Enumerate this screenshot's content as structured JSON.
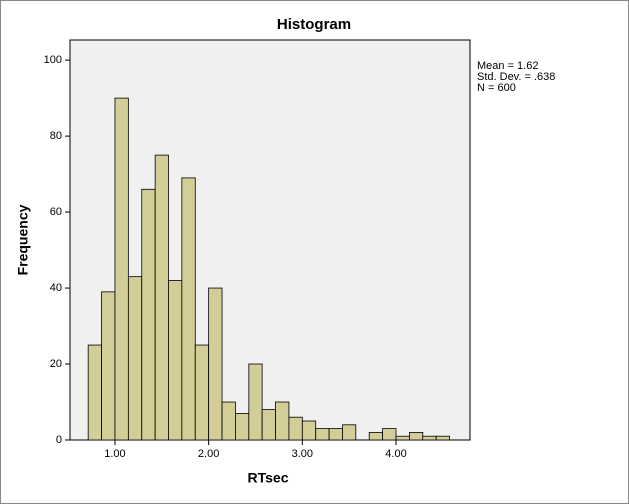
{
  "chart_data": {
    "type": "histogram",
    "title": "Histogram",
    "x_label": "RTsec",
    "y_label": "Frequency",
    "bins": [
      0.714,
      0.857,
      1,
      1.143,
      1.286,
      1.429,
      1.571,
      1.714,
      1.857,
      2,
      2.143,
      2.286,
      2.429,
      2.571,
      2.714,
      2.857,
      3,
      3.143,
      3.286,
      3.429,
      3.571,
      3.714,
      3.857,
      4,
      4.143,
      4.286,
      4.429,
      4.571
    ],
    "values": [
      25,
      39,
      90,
      43,
      66,
      75,
      42,
      69,
      25,
      40,
      10,
      7,
      20,
      8,
      10,
      6,
      5,
      3,
      3,
      4,
      0,
      2,
      3,
      1,
      2,
      1,
      1
    ],
    "color": "#d3ce97",
    "xlim": [
      0.52,
      4.79
    ],
    "ylim": [
      0,
      105.3
    ],
    "xticks": [
      {
        "value": 1,
        "label": "1.00"
      },
      {
        "value": 2,
        "label": "2.00"
      },
      {
        "value": 3,
        "label": "3.00"
      },
      {
        "value": 4,
        "label": "4.00"
      }
    ],
    "yticks": [
      0,
      20,
      40,
      60,
      80,
      100
    ],
    "stats": [
      "Mean = 1.62",
      "Std. Dev. = .638",
      "N = 600"
    ]
  }
}
